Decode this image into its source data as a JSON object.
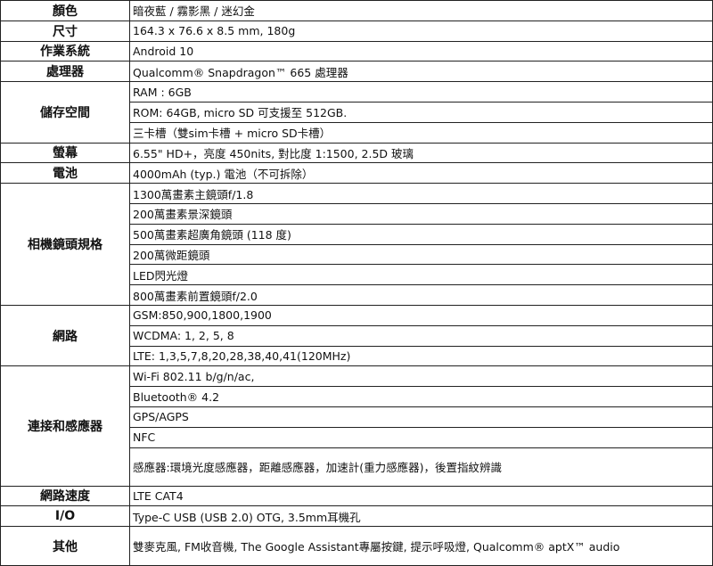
{
  "spec_table": {
    "rows": [
      {
        "label": "顏色",
        "values": [
          "暗夜藍 / 霧影黑 / 迷幻金"
        ]
      },
      {
        "label": "尺寸",
        "values": [
          "164.3 x 76.6 x 8.5 mm, 180g"
        ]
      },
      {
        "label": "作業系統",
        "values": [
          "Android 10"
        ]
      },
      {
        "label": "處理器",
        "values": [
          "Qualcomm® Snapdragon™ 665 處理器"
        ]
      },
      {
        "label": "儲存空間",
        "values": [
          "RAM : 6GB",
          "ROM: 64GB, micro SD 可支援至 512GB.",
          "三卡槽（雙sim卡槽 + micro SD卡槽）"
        ]
      },
      {
        "label": "螢幕",
        "values": [
          "6.55\" HD+，亮度 450nits, 對比度 1:1500, 2.5D 玻璃"
        ]
      },
      {
        "label": "電池",
        "values": [
          "4000mAh (typ.) 電池（不可拆除）"
        ]
      },
      {
        "label": "相機鏡頭規格",
        "values": [
          "1300萬畫素主鏡頭f/1.8",
          "200萬畫素景深鏡頭",
          "500萬畫素超廣角鏡頭 (118 度)",
          "200萬微距鏡頭",
          "LED閃光燈",
          "800萬畫素前置鏡頭f/2.0"
        ]
      },
      {
        "label": "網路",
        "values": [
          "GSM:850,900,1800,1900",
          "WCDMA: 1, 2, 5, 8",
          "LTE: 1,3,5,7,8,20,28,38,40,41(120MHz)"
        ]
      },
      {
        "label": "連接和感應器",
        "values": [
          "Wi-Fi 802.11 b/g/n/ac,",
          "Bluetooth® 4.2",
          "GPS/AGPS",
          "NFC",
          "感應器:環境光度感應器，距離感應器，加速計(重力感應器)，後置指紋辨識"
        ]
      },
      {
        "label": "網路速度",
        "values": [
          "LTE CAT4"
        ]
      },
      {
        "label": "I/O",
        "values": [
          "Type-C USB (USB 2.0) OTG, 3.5mm耳機孔"
        ]
      },
      {
        "label": "其他",
        "values": [
          "雙麥克風, FM收音機, The Google Assistant專屬按鍵, 提示呼吸燈, Qualcomm® aptX™ audio"
        ]
      }
    ]
  }
}
